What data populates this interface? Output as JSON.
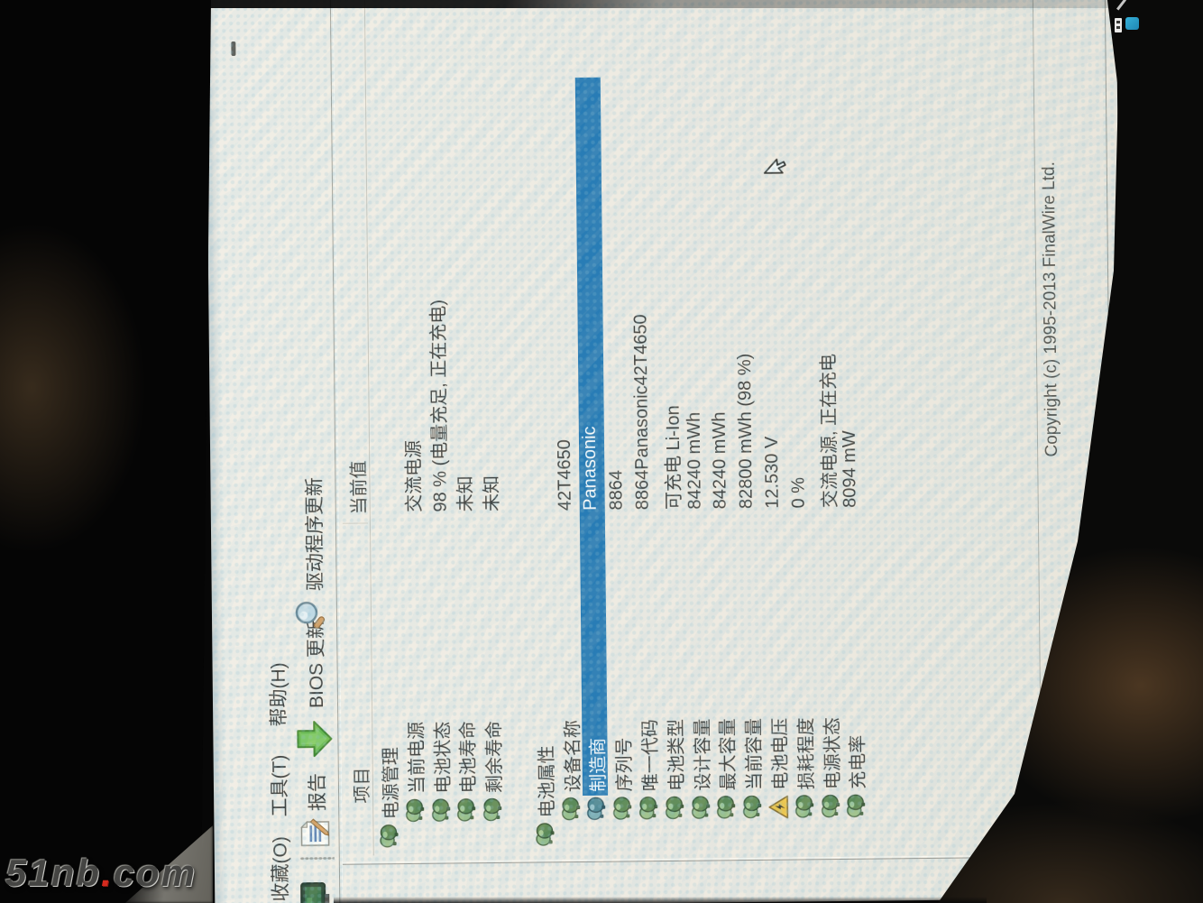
{
  "watermark": {
    "prefix": "51nb",
    "dot": ".",
    "suffix": "com"
  },
  "screen": {
    "menu": {
      "items": [
        {
          "label": "收藏(O)"
        },
        {
          "label": "工具(T)"
        },
        {
          "label": "帮助(H)"
        }
      ]
    },
    "toolbar": {
      "buttons": [
        {
          "icon": "computer-icon",
          "label": ""
        },
        {
          "icon": "report-document-icon",
          "label": "报告"
        },
        {
          "icon": "update-arrow-icon",
          "label": "BIOS 更新"
        },
        {
          "icon": "driver-update-magnifier-icon",
          "label": "驱动程序更新"
        }
      ]
    },
    "table": {
      "headers": {
        "item": "项目",
        "value": "当前值"
      },
      "rows": [
        {
          "kind": "section",
          "icon": "battery-pair-icon",
          "label": "电源管理",
          "value": ""
        },
        {
          "kind": "item",
          "icon": "battery-pair-icon",
          "label": "当前电源",
          "value": "交流电源"
        },
        {
          "kind": "item",
          "icon": "battery-pair-icon",
          "label": "电池状态",
          "value": "98 % (电量充足, 正在充电)"
        },
        {
          "kind": "item",
          "icon": "battery-pair-icon",
          "label": "电池寿命",
          "value": "未知"
        },
        {
          "kind": "item",
          "icon": "battery-pair-icon",
          "label": "剩余寿命",
          "value": "未知"
        },
        {
          "kind": "blank",
          "icon": "",
          "label": "",
          "value": ""
        },
        {
          "kind": "section",
          "icon": "battery-pair-icon",
          "label": "电池属性",
          "value": ""
        },
        {
          "kind": "item",
          "icon": "battery-pair-icon",
          "label": "设备名称",
          "value": "42T4650"
        },
        {
          "kind": "item",
          "icon": "battery-pair-selected-icon",
          "label": "制造商",
          "value": "Panasonic",
          "selected": true
        },
        {
          "kind": "item",
          "icon": "battery-pair-icon",
          "label": "序列号",
          "value": "8864"
        },
        {
          "kind": "item",
          "icon": "battery-pair-icon",
          "label": "唯一代码",
          "value": "8864Panasonic42T4650"
        },
        {
          "kind": "item",
          "icon": "battery-pair-icon",
          "label": "电池类型",
          "value": "可充电 Li-Ion"
        },
        {
          "kind": "item",
          "icon": "battery-pair-icon",
          "label": "设计容量",
          "value": "84240 mWh"
        },
        {
          "kind": "item",
          "icon": "battery-pair-icon",
          "label": "最大容量",
          "value": "84240 mWh"
        },
        {
          "kind": "item",
          "icon": "battery-pair-icon",
          "label": "当前容量",
          "value": "82800 mWh  (98 %)"
        },
        {
          "kind": "item",
          "icon": "warning-triangle-icon",
          "label": "电池电压",
          "value": "12.530 V"
        },
        {
          "kind": "item",
          "icon": "battery-pair-icon",
          "label": "损耗程度",
          "value": "0 %"
        },
        {
          "kind": "item",
          "icon": "battery-pair-icon",
          "label": "电源状态",
          "value": "交流电源, 正在充电"
        },
        {
          "kind": "item",
          "icon": "battery-pair-icon",
          "label": "充电率",
          "value": "8094 mW"
        }
      ]
    },
    "statusbar": {
      "copyright": "Copyright (c) 1995-2013 FinalWire Ltd."
    }
  },
  "taskbar": {
    "tray_icons": [
      "usb-device-icon",
      "blue-app-icon"
    ]
  },
  "colors": {
    "selection_blue": "#1170b2",
    "row_icon_green": "#5b8f4a",
    "warning_yellow": "#f2c230",
    "update_arrow_green": "#58b33a",
    "tray_blue": "#2aa3cc",
    "screen_bg": "#ece9e0"
  }
}
